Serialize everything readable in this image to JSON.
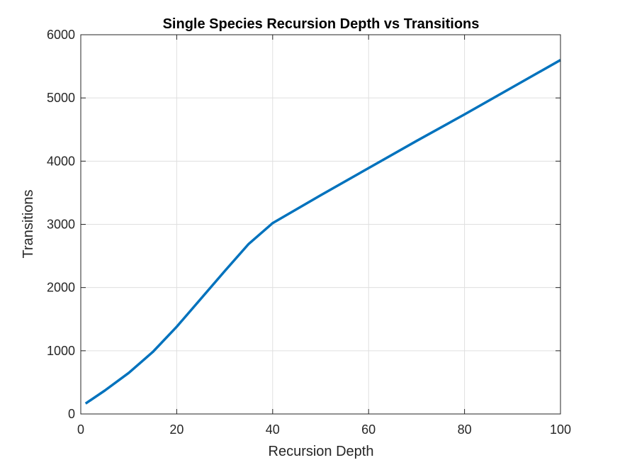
{
  "chart_data": {
    "type": "line",
    "title": "Single Species Recursion Depth vs Transitions",
    "xlabel": "Recursion Depth",
    "ylabel": "Transitions",
    "xlim": [
      0,
      100
    ],
    "ylim": [
      0,
      6000
    ],
    "x_ticks": [
      0,
      20,
      40,
      60,
      80,
      100
    ],
    "y_ticks": [
      0,
      1000,
      2000,
      3000,
      4000,
      5000,
      6000
    ],
    "grid": true,
    "series": [
      {
        "color": "#0072BD",
        "x": [
          1,
          5,
          10,
          15,
          20,
          25,
          30,
          35,
          40,
          50,
          60,
          70,
          80,
          90,
          100
        ],
        "y": [
          165,
          370,
          650,
          980,
          1380,
          1820,
          2260,
          2690,
          3020,
          3460,
          3890,
          4320,
          4740,
          5170,
          5600
        ]
      }
    ]
  }
}
